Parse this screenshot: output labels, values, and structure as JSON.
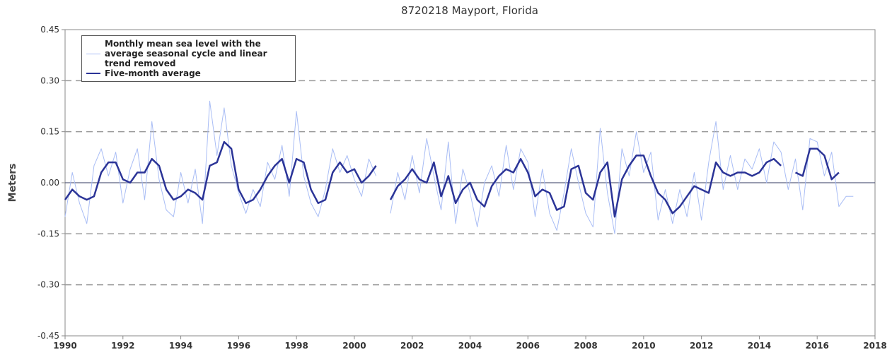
{
  "chart_data": {
    "type": "line",
    "title": "8720218 Mayport, Florida",
    "ylabel": "Meters",
    "x": [
      1990,
      1990.25,
      1990.5,
      1990.75,
      1991,
      1991.25,
      1991.5,
      1991.75,
      1992,
      1992.25,
      1992.5,
      1992.75,
      1993,
      1993.25,
      1993.5,
      1993.75,
      1994,
      1994.25,
      1994.5,
      1994.75,
      1995,
      1995.25,
      1995.5,
      1995.75,
      1996,
      1996.25,
      1996.5,
      1996.75,
      1997,
      1997.25,
      1997.5,
      1997.75,
      1998,
      1998.25,
      1998.5,
      1998.75,
      1999,
      1999.25,
      1999.5,
      1999.75,
      2000,
      2000.25,
      2000.5,
      2000.75,
      2001,
      2001.25,
      2001.5,
      2001.75,
      2002,
      2002.25,
      2002.5,
      2002.75,
      2003,
      2003.25,
      2003.5,
      2003.75,
      2004,
      2004.25,
      2004.5,
      2004.75,
      2005,
      2005.25,
      2005.5,
      2005.75,
      2006,
      2006.25,
      2006.5,
      2006.75,
      2007,
      2007.25,
      2007.5,
      2007.75,
      2008,
      2008.25,
      2008.5,
      2008.75,
      2009,
      2009.25,
      2009.5,
      2009.75,
      2010,
      2010.25,
      2010.5,
      2010.75,
      2011,
      2011.25,
      2011.5,
      2011.75,
      2012,
      2012.25,
      2012.5,
      2012.75,
      2013,
      2013.25,
      2013.5,
      2013.75,
      2014,
      2014.25,
      2014.5,
      2014.75,
      2015,
      2015.25,
      2015.5,
      2015.75,
      2016,
      2016.25,
      2016.5,
      2016.75,
      2017,
      2017.25
    ],
    "series": [
      {
        "name": "Monthly mean sea level with the average seasonal cycle and linear trend removed",
        "color": "#a9bdf5",
        "width": 1,
        "values": [
          -0.1,
          0.03,
          -0.06,
          -0.12,
          0.05,
          0.1,
          0.02,
          0.09,
          -0.06,
          0.04,
          0.1,
          -0.05,
          0.18,
          0.01,
          -0.08,
          -0.1,
          0.03,
          -0.06,
          0.04,
          -0.12,
          0.24,
          0.08,
          0.22,
          0.05,
          -0.03,
          -0.09,
          -0.02,
          -0.07,
          0.06,
          0.01,
          0.11,
          -0.04,
          0.21,
          0.02,
          -0.06,
          -0.1,
          -0.02,
          0.1,
          0.03,
          0.08,
          0.01,
          -0.04,
          0.07,
          0.02,
          null,
          -0.09,
          0.03,
          -0.05,
          0.08,
          -0.03,
          0.13,
          0.02,
          -0.08,
          0.12,
          -0.12,
          0.04,
          -0.03,
          -0.13,
          0.0,
          0.05,
          -0.04,
          0.11,
          -0.02,
          0.1,
          0.06,
          -0.1,
          0.04,
          -0.09,
          -0.14,
          -0.03,
          0.1,
          0.0,
          -0.09,
          -0.13,
          0.16,
          -0.03,
          -0.15,
          0.1,
          0.02,
          0.15,
          0.03,
          0.09,
          -0.11,
          -0.02,
          -0.12,
          -0.02,
          -0.1,
          0.03,
          -0.11,
          0.06,
          0.18,
          -0.02,
          0.08,
          -0.02,
          0.07,
          0.04,
          0.1,
          0.0,
          0.12,
          0.09,
          -0.02,
          0.07,
          -0.08,
          0.13,
          0.12,
          0.02,
          0.09,
          -0.07,
          -0.04,
          -0.04
        ]
      },
      {
        "name": "Five-month average",
        "color": "#2b3497",
        "width": 2.5,
        "values": [
          -0.05,
          -0.02,
          -0.04,
          -0.05,
          -0.04,
          0.03,
          0.06,
          0.06,
          0.01,
          0.0,
          0.03,
          0.03,
          0.07,
          0.05,
          -0.02,
          -0.05,
          -0.04,
          -0.02,
          -0.03,
          -0.05,
          0.05,
          0.06,
          0.12,
          0.1,
          -0.02,
          -0.06,
          -0.05,
          -0.02,
          0.02,
          0.05,
          0.07,
          0.0,
          0.07,
          0.06,
          -0.02,
          -0.06,
          -0.05,
          0.03,
          0.06,
          0.03,
          0.04,
          0.0,
          0.02,
          0.05,
          null,
          -0.05,
          -0.01,
          0.01,
          0.04,
          0.01,
          0.0,
          0.06,
          -0.04,
          0.02,
          -0.06,
          -0.02,
          0.0,
          -0.05,
          -0.07,
          -0.01,
          0.02,
          0.04,
          0.03,
          0.07,
          0.03,
          -0.04,
          -0.02,
          -0.03,
          -0.08,
          -0.07,
          0.04,
          0.05,
          -0.03,
          -0.05,
          0.03,
          0.06,
          -0.1,
          0.01,
          0.05,
          0.08,
          0.08,
          0.02,
          -0.03,
          -0.05,
          -0.09,
          -0.07,
          -0.04,
          -0.01,
          -0.02,
          -0.03,
          0.06,
          0.03,
          0.02,
          0.03,
          0.03,
          0.02,
          0.03,
          0.06,
          0.07,
          0.05,
          null,
          0.03,
          0.02,
          0.1,
          0.1,
          0.08,
          0.01,
          0.03,
          null,
          null
        ]
      }
    ],
    "xlim": [
      1990,
      2018
    ],
    "xticks": [
      1990,
      1992,
      1994,
      1996,
      1998,
      2000,
      2002,
      2004,
      2006,
      2008,
      2010,
      2012,
      2014,
      2016,
      2018
    ],
    "ylim": [
      -0.45,
      0.45
    ],
    "yticks": [
      {
        "value": -0.45,
        "label": "-0.45"
      },
      {
        "value": -0.3,
        "label": "-0.30"
      },
      {
        "value": -0.15,
        "label": "-0.15"
      },
      {
        "value": 0,
        "label": "0.00"
      },
      {
        "value": 0.15,
        "label": "0.15"
      },
      {
        "value": 0.3,
        "label": "0.30"
      },
      {
        "value": 0.45,
        "label": "0.45"
      }
    ],
    "grid": true,
    "legend": "upper left"
  }
}
